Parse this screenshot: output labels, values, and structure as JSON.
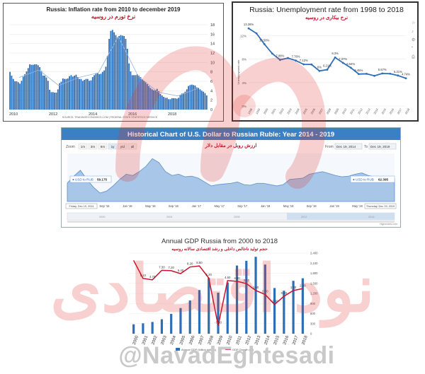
{
  "watermark": {
    "handle": "@NavadEghtesadi",
    "logo_text": "نود اقتصادی"
  },
  "colors": {
    "red": "#c8102e",
    "blue": "#2d6fb6",
    "usd_header": "#3b7fc4",
    "usd_fill": "#a8c6e8"
  },
  "chart_data": [
    {
      "id": "inflation",
      "type": "bar",
      "title": "Russia: Inflation rate from 2010 to december 2019",
      "subtitle": "نرخ تورم در روسیه",
      "source": "SOURCE: TRADINGECONOMICS.COM | FEDERAL STATE STATISTICS SERVICE",
      "x_ticks": [
        "2010",
        "2012",
        "2014",
        "2016",
        "2018"
      ],
      "y_ticks": [
        0,
        2,
        4,
        6,
        8,
        10,
        12,
        14,
        16,
        18
      ],
      "ylim": [
        0,
        18
      ],
      "monthly_values": [
        8.0,
        7.2,
        6.5,
        6.0,
        6.0,
        5.8,
        5.5,
        6.1,
        7.0,
        7.5,
        8.1,
        8.8,
        9.6,
        9.5,
        9.5,
        9.6,
        9.6,
        9.4,
        9.0,
        8.2,
        7.2,
        7.2,
        6.8,
        6.1,
        4.2,
        3.7,
        3.7,
        3.6,
        3.6,
        4.3,
        5.6,
        5.9,
        6.6,
        6.5,
        6.5,
        6.6,
        7.1,
        7.3,
        7.0,
        7.2,
        7.4,
        6.9,
        6.5,
        6.5,
        6.1,
        6.3,
        6.5,
        6.5,
        6.1,
        6.2,
        6.9,
        7.3,
        7.6,
        7.8,
        7.5,
        7.6,
        8.0,
        8.3,
        9.1,
        11.4,
        15.0,
        16.7,
        16.9,
        16.4,
        15.8,
        15.3,
        15.6,
        15.8,
        15.7,
        15.6,
        15.0,
        12.9,
        9.8,
        8.1,
        7.3,
        7.3,
        7.3,
        7.5,
        7.2,
        6.9,
        6.4,
        6.1,
        5.8,
        5.4,
        5.0,
        4.6,
        4.3,
        4.1,
        4.1,
        4.4,
        3.9,
        3.3,
        3.0,
        2.7,
        2.5,
        2.5,
        2.2,
        2.2,
        2.4,
        2.4,
        2.4,
        2.3,
        2.5,
        3.1,
        3.4,
        3.5,
        3.8,
        4.3,
        5.0,
        5.2,
        5.3,
        5.2,
        5.1,
        4.7,
        4.6,
        4.3,
        4.0,
        3.8,
        3.5,
        3.0
      ],
      "line_values_by_year": [
        6.8,
        8.4,
        5.1,
        6.8,
        7.8,
        15.5,
        7.1,
        3.7,
        2.9,
        4.5
      ]
    },
    {
      "id": "unemployment",
      "type": "line",
      "title": "Russia: Unemployment rate from 1998 to 2018",
      "subtitle": "نرخ بیکاری در روسیه",
      "ylabel": "Unemployment rate",
      "x": [
        "1998",
        "1999",
        "2000",
        "2001",
        "2002",
        "2003",
        "2004",
        "2005",
        "2006",
        "2007",
        "2008",
        "2009",
        "2010",
        "2011",
        "2012",
        "2013",
        "2014",
        "2015",
        "2016",
        "2017",
        "2018"
      ],
      "values": [
        13.26,
        12.4,
        10.58,
        8.96,
        7.88,
        8.2,
        7.76,
        7.12,
        7.1,
        6.0,
        6.21,
        8.3,
        7.37,
        6.54,
        5.46,
        5.5,
        5.16,
        5.57,
        5.52,
        5.21,
        4.74
      ],
      "labels": [
        "13.26%",
        "",
        "10.58%",
        "",
        "7.88%",
        "",
        "7.76%",
        "7.12%",
        "",
        "6%",
        "6.21%",
        "8.3%",
        "7.37%",
        "6.54%",
        "5.46%",
        "",
        "",
        "5.57%",
        "",
        "5.21%",
        "4.74%"
      ],
      "y_ticks": [
        "0%",
        "4%",
        "8%",
        "12%"
      ],
      "ylim": [
        0,
        14
      ]
    },
    {
      "id": "usd_rub",
      "type": "area",
      "title": "Historical Chart of U.S. Dollar to Russian Ruble: Year 2014 - 2019",
      "subtitle": "ارزش روبل در مقابل دلار",
      "zoom_label": "Zoom",
      "zoom_options": [
        "1m",
        "3m",
        "6m",
        "1y",
        "ytd",
        "all"
      ],
      "from_label": "From",
      "from_date": "Dec 19, 2014",
      "to_label": "To",
      "to_date": "Dec 19, 2019",
      "start_tooltip_name": "● USD to RUB",
      "start_tooltip_value": "59.175",
      "end_tooltip_name": "● USD to RUB",
      "end_tooltip_value": "62.395",
      "x_ticks": [
        "Friday, Dec 19, 2014",
        "Sep '15",
        "Jan '16",
        "May '16",
        "Sep '16",
        "Jan '17",
        "May '17",
        "Sep '17",
        "Jan '18",
        "May '18",
        "Sep '18",
        "Jan '19",
        "May '19",
        "Thursday, Dec 19, 2019"
      ],
      "navigator_ticks": [
        "2000",
        "2004",
        "2008",
        "2012",
        "2016"
      ],
      "credit": "Highcharts.com",
      "values": [
        59.2,
        64.5,
        69.0,
        62.0,
        56.0,
        51.5,
        53.0,
        57.0,
        62.0,
        66.0,
        65.0,
        68.0,
        72.0,
        78.0,
        75.0,
        68.0,
        65.0,
        66.0,
        64.0,
        64.5,
        63.0,
        60.0,
        57.0,
        58.0,
        58.5,
        59.0,
        60.0,
        58.0,
        57.5,
        59.0,
        59.0,
        58.0,
        57.0,
        58.0,
        62.0,
        62.5,
        63.0,
        66.0,
        67.0,
        68.0,
        66.5,
        65.0,
        64.0,
        64.5,
        66.0,
        67.0,
        65.0,
        64.0,
        63.5,
        63.0,
        62.4
      ]
    },
    {
      "id": "gdp",
      "type": "bar+line",
      "title": "Annual GDP Russia from 2000 to 2018",
      "subtitle": "حجم تولید ناخالص داخلی و رشد اقتصادی سالانه روسیه",
      "categories": [
        "2000",
        "2001",
        "2002",
        "2003",
        "2004",
        "2005",
        "2006",
        "2007",
        "2008",
        "2009",
        "2010",
        "2011",
        "2012",
        "2013",
        "2014",
        "2015",
        "2016",
        "2017",
        "2018"
      ],
      "gdp_values": [
        280,
        310,
        350,
        430,
        590,
        764,
        990,
        1300,
        1660,
        1220,
        1525,
        2030,
        2170,
        2290,
        2060,
        1360,
        1280,
        1575,
        1650
      ],
      "growth_values": [
        10.0,
        5.1,
        4.7,
        7.3,
        7.2,
        6.4,
        8.2,
        8.5,
        5.2,
        -7.8,
        4.5,
        4.3,
        3.7,
        1.8,
        0.7,
        -2.0,
        0.2,
        1.8,
        2.3
      ],
      "growth_labels": [
        "",
        "5.10",
        "4.70",
        "7.30",
        "7.20",
        "6.40",
        "8.20",
        "8.50",
        "5.20",
        "-7.80",
        "4.50",
        "4.30",
        "3.70",
        "1.80",
        "0.70",
        "-2.00",
        "0.20",
        "1.80",
        "2.30"
      ],
      "y_ticks_right": [
        "0",
        "300",
        "600",
        "900",
        "1,200",
        "1,500",
        "1,800",
        "2,100",
        "2,400"
      ],
      "gdp_max": 2400,
      "growth_range": [
        -10,
        12
      ],
      "legend": [
        "Annual GDP (billion dollars)",
        "GDP Growth (%)"
      ]
    }
  ]
}
